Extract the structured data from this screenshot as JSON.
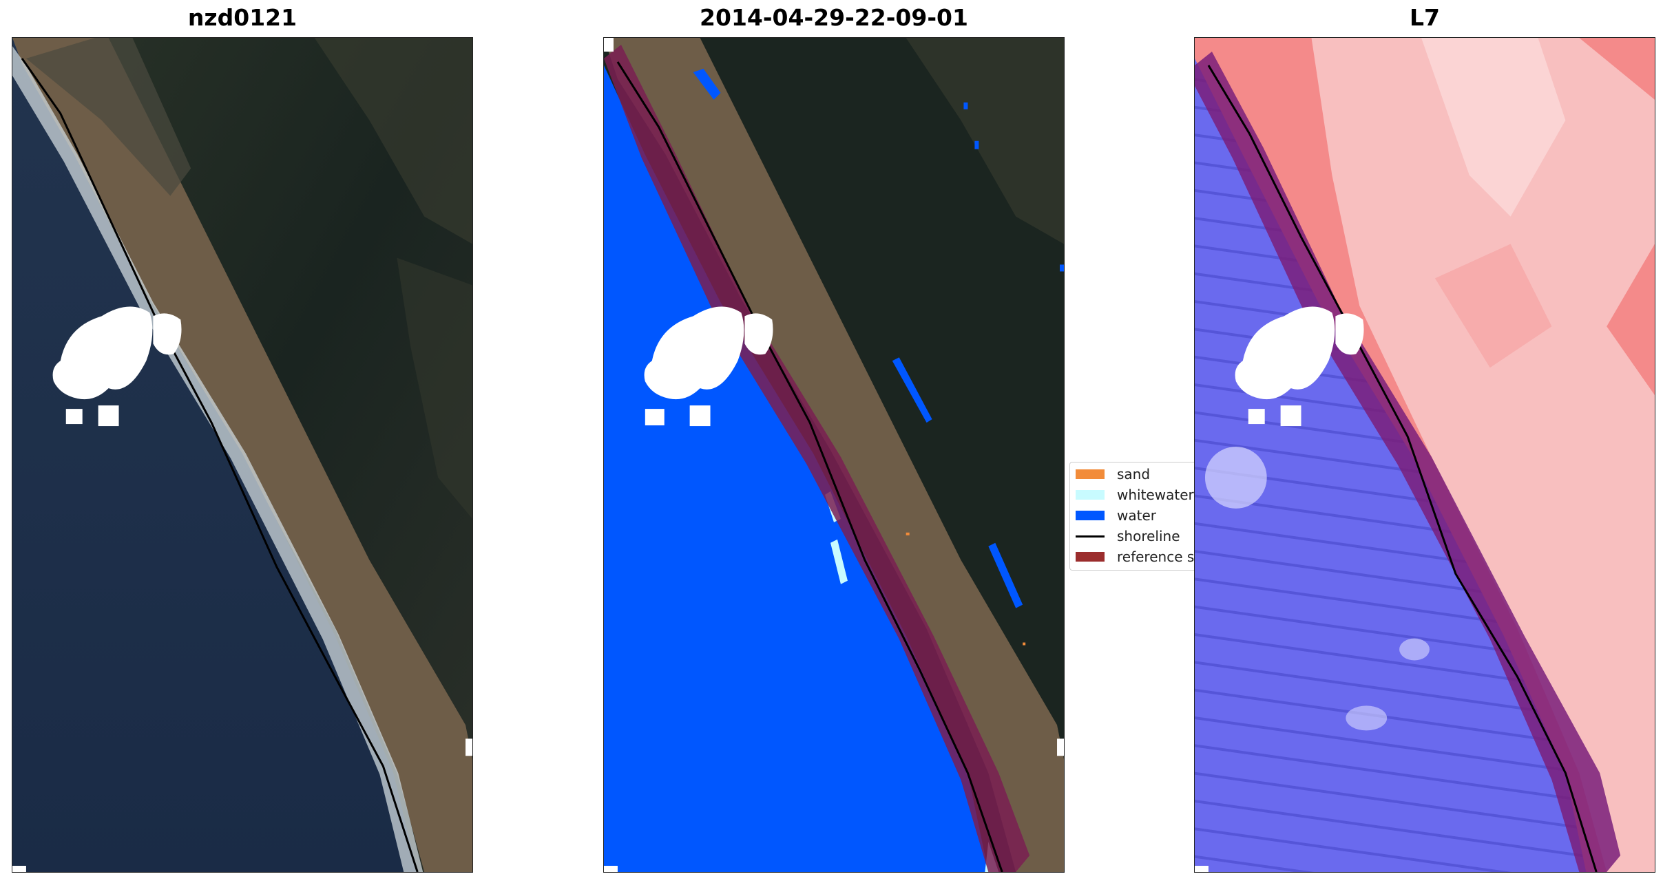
{
  "panels": [
    {
      "title": "nzd0121"
    },
    {
      "title": "2014-04-29-22-09-01"
    },
    {
      "title": "L7"
    }
  ],
  "legend": {
    "items": [
      {
        "label": "sand",
        "color": "#f28c3a",
        "kind": "patch"
      },
      {
        "label": "whitewater",
        "color": "#c8fbff",
        "kind": "patch"
      },
      {
        "label": "water",
        "color": "#0057ff",
        "kind": "patch"
      },
      {
        "label": "shoreline",
        "color": "#000000",
        "kind": "line"
      },
      {
        "label": "reference shoreline",
        "color": "#9b2d2d",
        "kind": "patch"
      }
    ]
  },
  "colors": {
    "ocean": "#1c2e48",
    "forest": "#1b2622",
    "beach": "#6b5b47",
    "cloud": "#ffffff",
    "water_class": "#0057ff",
    "reference_buffer": "#7a1f52",
    "land_index": "#f48a8a",
    "water_index": "#6a6aee"
  }
}
